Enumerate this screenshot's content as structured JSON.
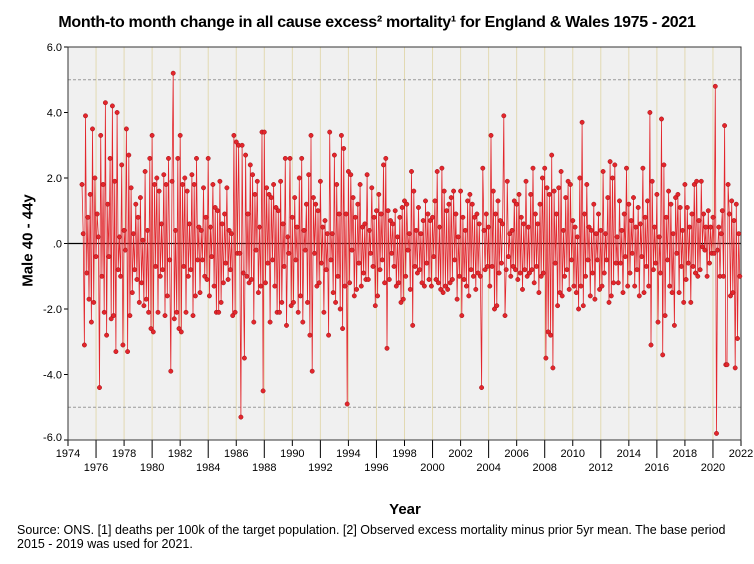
{
  "chart_data": {
    "type": "line",
    "title": "Month-to month change in all cause excess² mortality¹  for England & Wales 1975 - 2021",
    "xlabel": "Year",
    "ylabel": "Male 40 - 44y",
    "xlim": [
      1974,
      2022
    ],
    "ylim": [
      -6,
      6
    ],
    "xticks": [
      1974,
      1976,
      1978,
      1980,
      1982,
      1984,
      1986,
      1988,
      1990,
      1992,
      1994,
      1996,
      1998,
      2000,
      2002,
      2004,
      2006,
      2008,
      2010,
      2012,
      2014,
      2016,
      2018,
      2020,
      2022
    ],
    "yticks": [
      "-6.0",
      "-4.0",
      "-2.0",
      ".0",
      "2.0",
      "4.0",
      "6.0"
    ],
    "reference_lines": [
      -5,
      0,
      5
    ],
    "grid": "vertical",
    "series_color": "#e3262c",
    "start_year": 1975,
    "monthly_values": [
      [
        1.8,
        0.3,
        -3.1,
        3.9,
        -0.9,
        0.8,
        -1.7,
        1.5,
        -2.4,
        3.5,
        -1.8,
        2.0
      ],
      [
        -0.4,
        0.9,
        0.2,
        -4.4,
        3.3,
        -1.0,
        1.8,
        -2.1,
        4.3,
        -2.8,
        1.2,
        -0.4
      ],
      [
        2.6,
        -2.3,
        4.2,
        -2.2,
        1.9,
        -3.3,
        4.0,
        -0.8,
        0.2,
        -1.0,
        2.4,
        -3.1
      ],
      [
        0.4,
        -0.2,
        3.5,
        -3.3,
        2.7,
        -2.2,
        1.7,
        -1.5,
        0.3,
        -0.8,
        1.2,
        -1.1
      ],
      [
        0.8,
        -1.8,
        1.4,
        -1.2,
        0.1,
        -1.9,
        2.2,
        -1.7,
        0.4,
        -2.1,
        2.6,
        -2.6
      ],
      [
        3.3,
        -2.7,
        1.8,
        -0.7,
        2.0,
        -2.1,
        1.6,
        -1.0,
        0.6,
        -0.8,
        2.1,
        -2.2
      ],
      [
        1.8,
        -1.6,
        2.6,
        -0.5,
        -3.9,
        1.9,
        5.2,
        -2.3,
        0.4,
        -2.1,
        2.6,
        -2.6
      ],
      [
        3.3,
        -2.7,
        1.8,
        -0.7,
        2.0,
        -2.1,
        1.6,
        -1.0,
        0.6,
        -0.8,
        2.1,
        -2.2
      ],
      [
        1.8,
        -1.6,
        2.6,
        -0.5,
        0.5,
        -1.5,
        0.4,
        -0.5,
        1.7,
        -1.0,
        0.8,
        -1.1
      ],
      [
        2.6,
        -1.6,
        0.5,
        -0.4,
        1.8,
        -1.3,
        1.1,
        -2.1,
        1.0,
        -2.1,
        1.9,
        -1.8
      ],
      [
        0.6,
        -1.2,
        0.9,
        -0.6,
        1.7,
        -1.1,
        0.4,
        -0.8,
        0.3,
        -2.2,
        3.3,
        -2.1
      ],
      [
        3.1,
        -0.3,
        3.0,
        -0.3,
        -5.3,
        3.0,
        -0.9,
        -3.5,
        2.7,
        -1.0,
        0.9,
        -1.2
      ],
      [
        2.4,
        -1.1,
        2.1,
        -2.4,
        1.5,
        -0.2,
        1.9,
        -1.5,
        0.5,
        -1.3,
        3.4,
        -4.5
      ],
      [
        3.4,
        -1.2,
        1.7,
        -0.6,
        1.5,
        -2.4,
        1.4,
        -0.5,
        1.8,
        -1.3,
        1.1,
        -2.1
      ],
      [
        1.0,
        -2.1,
        1.9,
        -1.8,
        0.6,
        -0.7,
        2.6,
        -2.5,
        0.2,
        -0.3,
        2.6,
        -1.9
      ],
      [
        0.8,
        -1.8,
        1.4,
        -0.5,
        0.5,
        -2.1,
        2.0,
        -1.6,
        2.6,
        -2.4,
        0.4,
        -0.2
      ],
      [
        1.2,
        -1.8,
        2.1,
        -2.8,
        3.3,
        -3.9,
        1.4,
        -0.3,
        1.2,
        -1.3,
        1.0,
        -1.2
      ],
      [
        1.9,
        -0.6,
        0.5,
        -2.1,
        0.7,
        -0.8,
        0.3,
        -2.8,
        3.4,
        -0.5,
        0.3,
        -1.5
      ],
      [
        2.7,
        -1.8,
        1.8,
        -1.0,
        0.9,
        -2.0,
        3.3,
        -2.6,
        2.9,
        -1.3,
        0.9,
        -4.9
      ],
      [
        2.2,
        -1.2,
        2.1,
        -0.2,
        1.4,
        -1.6,
        0.8,
        -1.4,
        1.2,
        -0.6,
        1.8,
        -1.3
      ],
      [
        0.5,
        -0.9,
        0.6,
        -1.1,
        2.1,
        -1.1,
        0.4,
        -0.3,
        1.7,
        -0.7,
        0.8,
        -1.9
      ],
      [
        1.0,
        -1.6,
        1.5,
        -0.8,
        0.9,
        -0.5,
        2.4,
        -1.2,
        2.6,
        -3.2,
        1.0,
        -1.1
      ],
      [
        0.7,
        -0.3,
        0.6,
        -0.7,
        1.0,
        -1.3,
        0.2,
        -1.2,
        0.8,
        -1.8,
        1.1,
        -1.7
      ],
      [
        1.3,
        -1.0,
        1.2,
        -0.2,
        0.3,
        -1.4,
        2.2,
        -2.5,
        1.6,
        -0.7,
        0.4,
        -0.9
      ],
      [
        1.1,
        -0.8,
        0.3,
        -1.2,
        0.7,
        -1.3,
        1.3,
        -0.6,
        0.9,
        -1.1,
        0.7,
        -1.3
      ],
      [
        0.8,
        -0.4,
        1.3,
        -1.1,
        2.2,
        -1.2,
        0.5,
        -1.4,
        2.3,
        -1.5,
        1.6,
        -1.3
      ],
      [
        1.0,
        -1.4,
        1.2,
        -1.2,
        1.4,
        -1.1,
        1.6,
        -0.5,
        0.9,
        -1.7,
        0.2,
        -1.0
      ],
      [
        1.6,
        -2.2,
        0.8,
        -1.1,
        0.4,
        -1.3,
        1.3,
        -1.6,
        1.5,
        -0.8,
        1.2,
        -1.0
      ],
      [
        0.8,
        -1.4,
        0.9,
        -0.9,
        0.6,
        -1.0,
        -4.4,
        2.3,
        0.4,
        -0.8,
        0.9,
        -0.7
      ],
      [
        0.5,
        -1.3,
        3.3,
        -0.7,
        1.6,
        -2.0,
        0.9,
        -1.9,
        1.3,
        -0.9,
        0.7,
        -0.6
      ],
      [
        0.6,
        3.9,
        -2.2,
        -0.8,
        1.9,
        -0.4,
        0.3,
        -1.0,
        0.4,
        -0.7,
        1.3,
        -0.8
      ],
      [
        1.2,
        -1.1,
        1.5,
        -0.9,
        0.8,
        -1.4,
        0.6,
        -0.8,
        1.9,
        -1.0,
        0.5,
        -0.9
      ],
      [
        1.5,
        -0.8,
        2.3,
        -1.2,
        0.9,
        -0.7,
        0.6,
        -1.5,
        1.2,
        -1.0,
        2.0,
        -0.9
      ],
      [
        2.3,
        -3.5,
        1.7,
        -2.7,
        1.5,
        -2.8,
        2.7,
        -3.8,
        1.6,
        -0.6,
        0.9,
        -1.9
      ],
      [
        1.7,
        -1.5,
        2.2,
        -1.6,
        0.4,
        -1.0,
        1.4,
        -0.8,
        1.9,
        -1.4,
        1.8,
        -0.5
      ],
      [
        0.7,
        -1.3,
        0.5,
        -1.5,
        0.2,
        -2.0,
        2.0,
        -1.3,
        3.7,
        -1.9,
        0.9,
        -1.0
      ],
      [
        1.8,
        -0.5,
        0.5,
        -1.6,
        0.4,
        -0.9,
        1.2,
        -1.7,
        0.3,
        -0.5,
        0.9,
        -1.4
      ],
      [
        0.4,
        -1.3,
        2.2,
        -0.9,
        0.3,
        -0.5,
        1.4,
        -1.8,
        2.5,
        -1.6,
        2.0,
        -1.2
      ],
      [
        2.4,
        -0.6,
        0.2,
        -1.2,
        1.3,
        -0.6,
        0.4,
        -1.5,
        0.9,
        -0.4,
        2.3,
        -1.3
      ],
      [
        1.2,
        -0.9,
        0.7,
        -0.3,
        1.4,
        -1.3,
        0.5,
        -0.8,
        1.1,
        -1.6,
        0.6,
        -0.4
      ],
      [
        2.3,
        -1.5,
        0.8,
        -0.7,
        1.3,
        -1.3,
        4.0,
        -3.1,
        1.9,
        -0.8,
        0.5,
        -0.6
      ],
      [
        1.5,
        -2.4,
        0.2,
        -0.9,
        3.8,
        -3.4,
        2.4,
        -2.2,
        0.8,
        -0.5,
        1.6,
        -1.3
      ],
      [
        1.2,
        -1.5,
        0.3,
        -2.5,
        1.4,
        -0.3,
        1.5,
        -1.5,
        1.1,
        -0.7,
        0.4,
        -1.8
      ],
      [
        1.8,
        -1.1,
        1.1,
        -0.6,
        0.5,
        -1.8,
        0.9,
        -0.7,
        1.8,
        -0.9,
        1.9,
        -1.0
      ],
      [
        0.7,
        -0.8,
        1.9,
        -0.1,
        0.9,
        -0.2,
        0.5,
        -1.0,
        1.0,
        -0.6,
        0.5,
        -0.3
      ],
      [
        0.8,
        -0.3,
        4.8,
        -5.8,
        -0.2,
        0.5,
        -1.0,
        0.3,
        1.0,
        -1.0,
        3.6,
        -3.7
      ],
      [
        -3.7,
        1.8,
        0.9,
        -1.6,
        1.3,
        -1.5,
        0.7,
        -3.8,
        1.2,
        -2.9,
        0.3,
        -1.0
      ]
    ]
  },
  "footnote": "Source: ONS. [1] deaths per 100k of the target population. [2] Observed excess mortality minus prior 5yr mean. The base period 2015 - 2019 was used for 2021."
}
